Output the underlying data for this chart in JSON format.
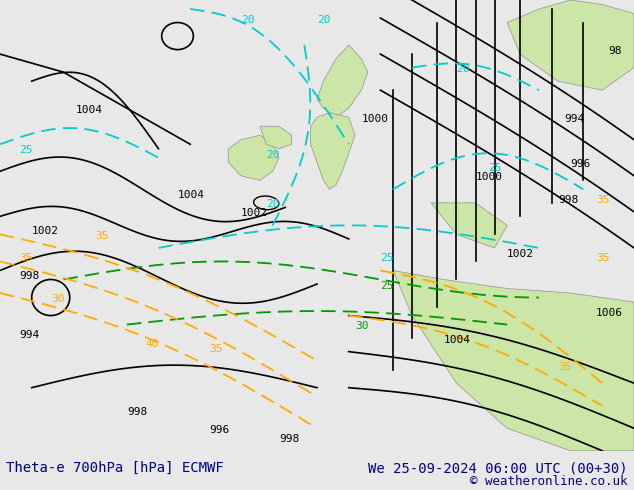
{
  "title_left": "Theta-e 700hPa [hPa] ECMWF",
  "title_right": "We 25-09-2024 06:00 UTC (00+30)",
  "copyright": "© weatheronline.co.uk",
  "bg_color": "#e8e8e8",
  "land_color_green": "#c8e6a0",
  "land_color_gray": "#c8c8c8",
  "fig_width": 6.34,
  "fig_height": 4.9,
  "dpi": 100,
  "bottom_bar_color": "#d8d8d8",
  "title_fontsize": 10,
  "copyright_fontsize": 9,
  "label_fontsize": 8,
  "black_contour_color": "#000000",
  "cyan_contour_color": "#00cccc",
  "yellow_contour_color": "#ffaa00",
  "green_contour_color": "#66cc00",
  "dark_green_contour_color": "#009900"
}
